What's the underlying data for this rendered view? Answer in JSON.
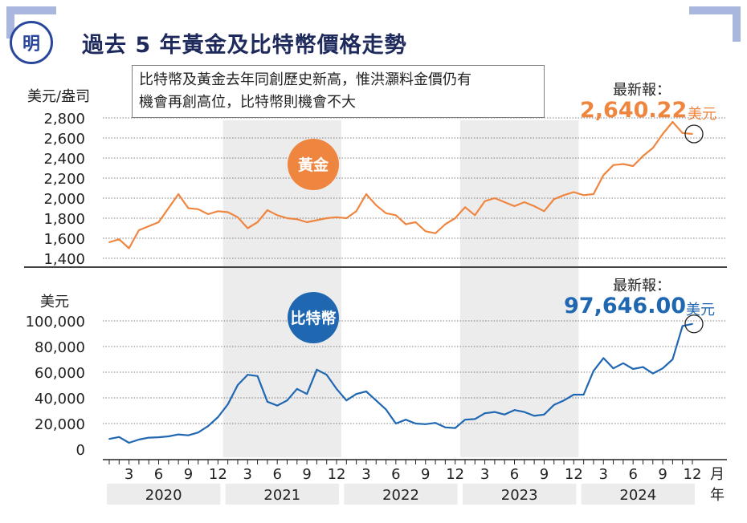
{
  "header": {
    "logo_text": "明",
    "title": "過去 5 年黃金及比特幣價格走勢"
  },
  "note": {
    "line1": "比特幣及黃金去年同創歷史新高，惟洪灝料金價仍有",
    "line2": "機會再創高位，比特幣則機會不大"
  },
  "colors": {
    "gold": "#ef8640",
    "bitcoin": "#2067b2",
    "title": "#1e2a5c",
    "shade": "#ececec",
    "corner": "#a9b6dd"
  },
  "gold_panel": {
    "unit": "美元/盎司",
    "badge": "黃金",
    "latest_label": "最新報：",
    "latest_value": "2,640.22",
    "latest_unit": "美元"
  },
  "btc_panel": {
    "unit": "美元",
    "badge": "比特幣",
    "latest_label": "最新報：",
    "latest_value": "97,646.00",
    "latest_unit": "美元"
  },
  "x_axis": {
    "month_ticks": [
      "3",
      "6",
      "9",
      "12",
      "3",
      "6",
      "9",
      "12",
      "3",
      "6",
      "9",
      "12",
      "3",
      "6",
      "9",
      "12",
      "3",
      "6",
      "9",
      "12"
    ],
    "years": [
      "2020",
      "2021",
      "2022",
      "2023",
      "2024"
    ],
    "month_unit": "月",
    "year_unit": "年"
  },
  "chart_data": [
    {
      "type": "line",
      "series": [
        {
          "name": "黃金",
          "points": [
            [
              "2020-01",
              1560
            ],
            [
              "2020-02",
              1590
            ],
            [
              "2020-03",
              1500
            ],
            [
              "2020-04",
              1680
            ],
            [
              "2020-05",
              1720
            ],
            [
              "2020-06",
              1760
            ],
            [
              "2020-07",
              1900
            ],
            [
              "2020-08",
              2040
            ],
            [
              "2020-09",
              1900
            ],
            [
              "2020-10",
              1890
            ],
            [
              "2020-11",
              1840
            ],
            [
              "2020-12",
              1870
            ],
            [
              "2021-01",
              1860
            ],
            [
              "2021-02",
              1810
            ],
            [
              "2021-03",
              1700
            ],
            [
              "2021-04",
              1760
            ],
            [
              "2021-05",
              1880
            ],
            [
              "2021-06",
              1830
            ],
            [
              "2021-07",
              1800
            ],
            [
              "2021-08",
              1790
            ],
            [
              "2021-09",
              1760
            ],
            [
              "2021-10",
              1780
            ],
            [
              "2021-11",
              1800
            ],
            [
              "2021-12",
              1810
            ],
            [
              "2022-01",
              1800
            ],
            [
              "2022-02",
              1870
            ],
            [
              "2022-03",
              2040
            ],
            [
              "2022-04",
              1930
            ],
            [
              "2022-05",
              1850
            ],
            [
              "2022-06",
              1830
            ],
            [
              "2022-07",
              1740
            ],
            [
              "2022-08",
              1760
            ],
            [
              "2022-09",
              1670
            ],
            [
              "2022-10",
              1650
            ],
            [
              "2022-11",
              1740
            ],
            [
              "2022-12",
              1800
            ],
            [
              "2023-01",
              1910
            ],
            [
              "2023-02",
              1830
            ],
            [
              "2023-03",
              1970
            ],
            [
              "2023-04",
              2000
            ],
            [
              "2023-05",
              1960
            ],
            [
              "2023-06",
              1920
            ],
            [
              "2023-07",
              1960
            ],
            [
              "2023-08",
              1920
            ],
            [
              "2023-09",
              1870
            ],
            [
              "2023-10",
              1990
            ],
            [
              "2023-11",
              2030
            ],
            [
              "2023-12",
              2060
            ],
            [
              "2024-01",
              2030
            ],
            [
              "2024-02",
              2040
            ],
            [
              "2024-03",
              2230
            ],
            [
              "2024-04",
              2330
            ],
            [
              "2024-05",
              2340
            ],
            [
              "2024-06",
              2320
            ],
            [
              "2024-07",
              2420
            ],
            [
              "2024-08",
              2500
            ],
            [
              "2024-09",
              2640
            ],
            [
              "2024-10",
              2760
            ],
            [
              "2024-11",
              2650
            ],
            [
              "2024-12",
              2640.22
            ]
          ]
        }
      ],
      "ylabel": "美元/盎司",
      "ylim": [
        1400,
        2800
      ],
      "yticks": [
        1400,
        1600,
        1800,
        2000,
        2200,
        2400,
        2600,
        2800
      ],
      "ytick_labels": [
        "1,400",
        "1,600",
        "1,800",
        "2,000",
        "2,200",
        "2,400",
        "2,600",
        "2,800"
      ],
      "grid": true
    },
    {
      "type": "line",
      "series": [
        {
          "name": "比特幣",
          "points": [
            [
              "2020-01",
              8000
            ],
            [
              "2020-02",
              9500
            ],
            [
              "2020-03",
              5000
            ],
            [
              "2020-04",
              7500
            ],
            [
              "2020-05",
              9000
            ],
            [
              "2020-06",
              9300
            ],
            [
              "2020-07",
              10000
            ],
            [
              "2020-08",
              11500
            ],
            [
              "2020-09",
              10800
            ],
            [
              "2020-10",
              13000
            ],
            [
              "2020-11",
              18000
            ],
            [
              "2020-12",
              25000
            ],
            [
              "2021-01",
              35000
            ],
            [
              "2021-02",
              50000
            ],
            [
              "2021-03",
              58000
            ],
            [
              "2021-04",
              57000
            ],
            [
              "2021-05",
              37000
            ],
            [
              "2021-06",
              34000
            ],
            [
              "2021-07",
              38000
            ],
            [
              "2021-08",
              47000
            ],
            [
              "2021-09",
              43000
            ],
            [
              "2021-10",
              62000
            ],
            [
              "2021-11",
              58000
            ],
            [
              "2021-12",
              47000
            ],
            [
              "2022-01",
              38000
            ],
            [
              "2022-02",
              43000
            ],
            [
              "2022-03",
              45000
            ],
            [
              "2022-04",
              38000
            ],
            [
              "2022-05",
              31000
            ],
            [
              "2022-06",
              20000
            ],
            [
              "2022-07",
              23000
            ],
            [
              "2022-08",
              20000
            ],
            [
              "2022-09",
              19500
            ],
            [
              "2022-10",
              20500
            ],
            [
              "2022-11",
              17000
            ],
            [
              "2022-12",
              16500
            ],
            [
              "2023-01",
              23000
            ],
            [
              "2023-02",
              23500
            ],
            [
              "2023-03",
              28000
            ],
            [
              "2023-04",
              29000
            ],
            [
              "2023-05",
              27000
            ],
            [
              "2023-06",
              30500
            ],
            [
              "2023-07",
              29000
            ],
            [
              "2023-08",
              26000
            ],
            [
              "2023-09",
              27000
            ],
            [
              "2023-10",
              34500
            ],
            [
              "2023-11",
              38000
            ],
            [
              "2023-12",
              42500
            ],
            [
              "2024-01",
              42500
            ],
            [
              "2024-02",
              61000
            ],
            [
              "2024-03",
              71000
            ],
            [
              "2024-04",
              63000
            ],
            [
              "2024-05",
              67000
            ],
            [
              "2024-06",
              62500
            ],
            [
              "2024-07",
              64000
            ],
            [
              "2024-08",
              59000
            ],
            [
              "2024-09",
              63000
            ],
            [
              "2024-10",
              70000
            ],
            [
              "2024-11",
              96000
            ],
            [
              "2024-12",
              97646
            ]
          ]
        }
      ],
      "ylabel": "美元",
      "ylim": [
        0,
        100000
      ],
      "yticks": [
        0,
        20000,
        40000,
        60000,
        80000,
        100000
      ],
      "ytick_labels": [
        "0",
        "20,000",
        "40,000",
        "60,000",
        "80,000",
        "100,000"
      ],
      "grid": true
    }
  ]
}
